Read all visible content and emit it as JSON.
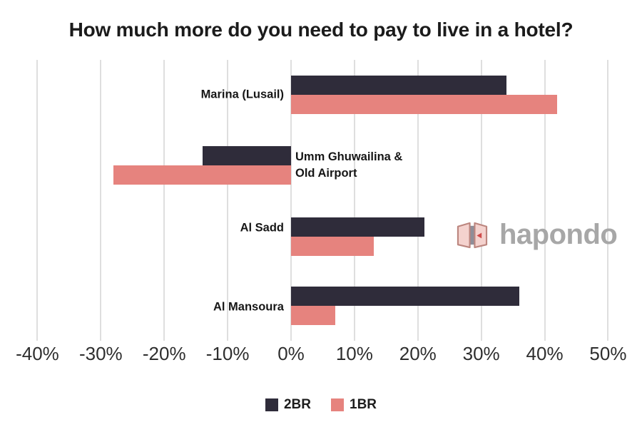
{
  "chart_data": {
    "type": "bar",
    "orientation": "horizontal",
    "title": "How much more do you need to pay to live in a hotel?",
    "categories": [
      "Marina (Lusail)",
      "Umm Ghuwailina &\nOld Airport",
      "Al Sadd",
      "Al Mansoura"
    ],
    "series": [
      {
        "name": "2BR",
        "color": "#2f2c3a",
        "values": [
          34,
          -14,
          21,
          36
        ]
      },
      {
        "name": "1BR",
        "color": "#e6837e",
        "values": [
          42,
          -28,
          13,
          7
        ]
      }
    ],
    "x_ticks": [
      -40,
      -30,
      -20,
      -10,
      0,
      10,
      20,
      30,
      40,
      50
    ],
    "x_tick_labels": [
      "-40%",
      "-30%",
      "-20%",
      "-10%",
      "0%",
      "10%",
      "20%",
      "30%",
      "40%",
      "50%"
    ],
    "xlim": [
      -40,
      50
    ],
    "x_unit": "percent",
    "grid": "vertical",
    "legend_position": "bottom"
  },
  "watermark": {
    "text": "hapondo"
  },
  "colors": {
    "background": "#ffffff",
    "title_text": "#1b1b1b",
    "axis_text": "#2e2e2e",
    "category_text": "#161616",
    "legend_text": "#1d1d1d",
    "gridline": "#dedede",
    "series_2br": "#2f2c3a",
    "series_1br": "#e6837e",
    "logo_text": "#a7a7a7",
    "logo_panel": "#f4d2ce",
    "logo_panel_border": "#bc867f",
    "logo_spine": "#8e8e98",
    "logo_marker": "#cf4b4b"
  }
}
